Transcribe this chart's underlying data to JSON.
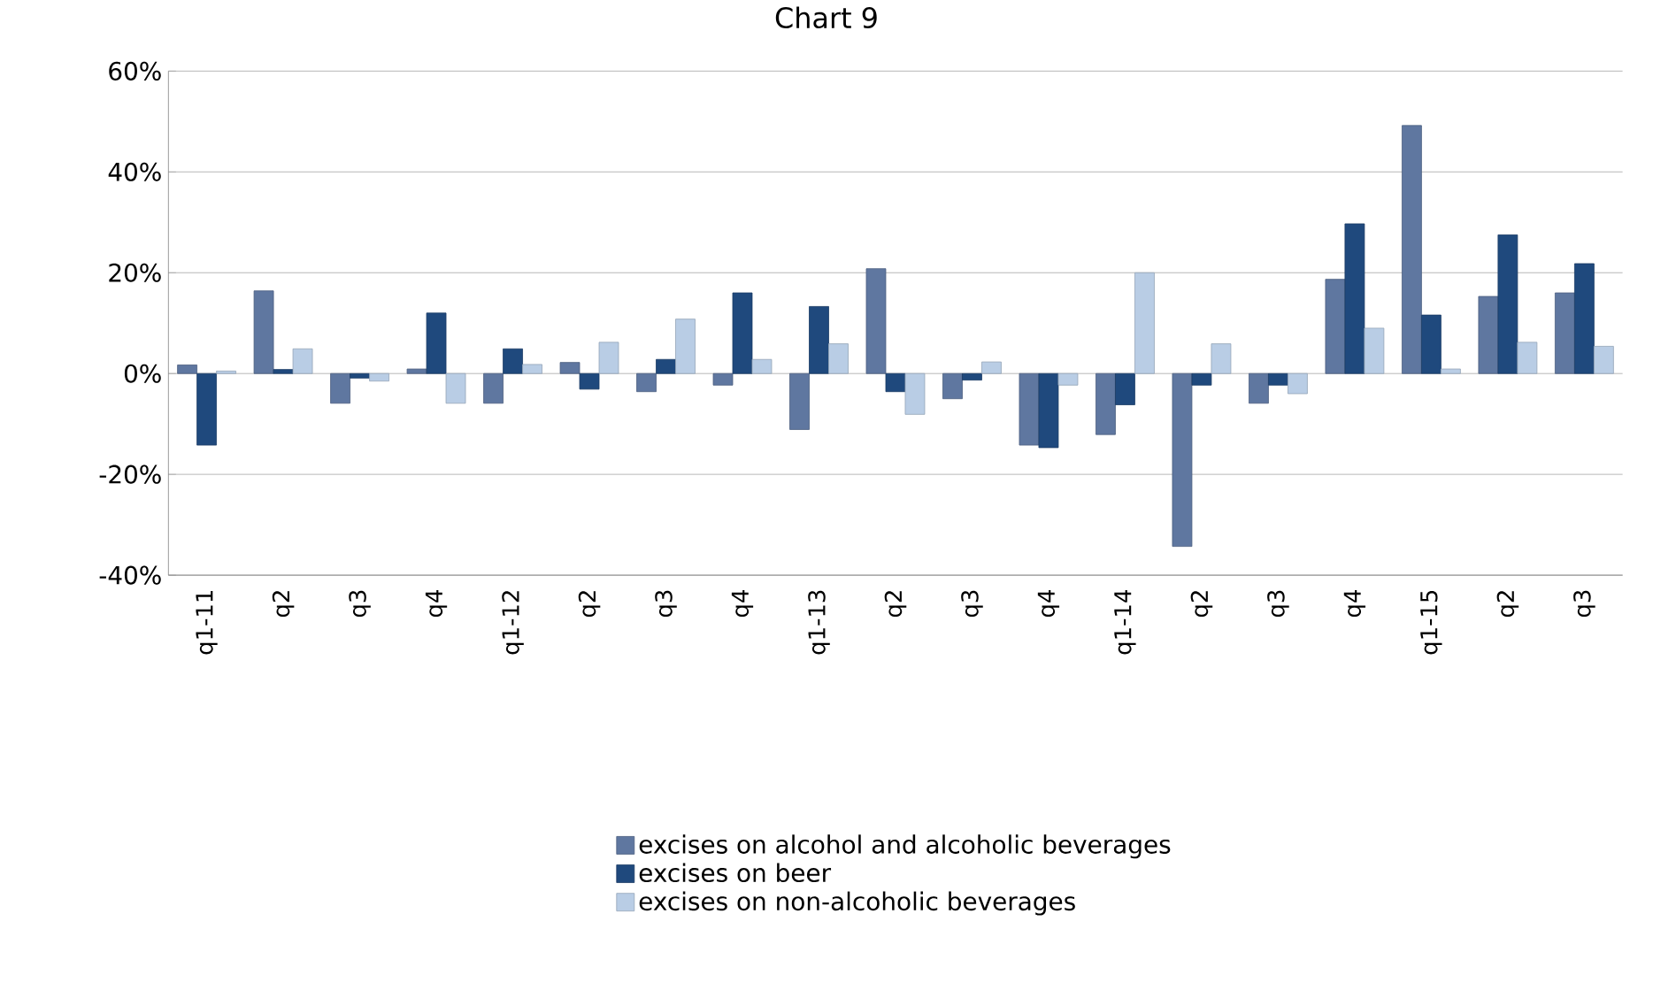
{
  "chart_data": {
    "type": "bar",
    "title": "Chart 9",
    "categories": [
      "q1-11",
      "q2",
      "q3",
      "q4",
      "q1-12",
      "q2",
      "q3",
      "q4",
      "q1-13",
      "q2",
      "q3",
      "q4",
      "q1-14",
      "q2",
      "q3",
      "q4",
      "q1-15",
      "q2",
      "q3"
    ],
    "series": [
      {
        "name": "excises on alcohol and alcoholic beverages",
        "color": "#5f77a0",
        "values": [
          1.7,
          16.4,
          -5.9,
          0.9,
          -5.9,
          2.2,
          -3.6,
          -2.3,
          -11.1,
          20.8,
          -5.0,
          -14.2,
          -12.1,
          -34.3,
          -5.9,
          18.7,
          49.2,
          15.3,
          16.0
        ]
      },
      {
        "name": "excises on beer",
        "color": "#1f497d",
        "values": [
          -14.2,
          0.8,
          -0.9,
          12.0,
          4.9,
          -3.1,
          2.8,
          16.0,
          13.3,
          -3.6,
          -1.3,
          -14.7,
          -6.2,
          -2.3,
          -2.3,
          29.7,
          11.6,
          27.5,
          21.8
        ]
      },
      {
        "name": "excises on non-alcoholic beverages",
        "color": "#b9cde5",
        "values": [
          0.5,
          4.9,
          -1.5,
          -5.9,
          1.8,
          6.2,
          10.8,
          2.8,
          5.9,
          -8.1,
          2.3,
          -2.3,
          20.0,
          5.9,
          -4.0,
          9.0,
          0.9,
          6.2,
          5.4
        ]
      }
    ],
    "ylim": [
      -40,
      60
    ],
    "yticks": [
      {
        "value": -40,
        "label": "-40%"
      },
      {
        "value": -20,
        "label": "-20%"
      },
      {
        "value": 0,
        "label": "0%"
      },
      {
        "value": 20,
        "label": "20%"
      },
      {
        "value": 40,
        "label": "40%"
      },
      {
        "value": 60,
        "label": "60%"
      }
    ],
    "grid": "y",
    "legend": "bottom"
  }
}
